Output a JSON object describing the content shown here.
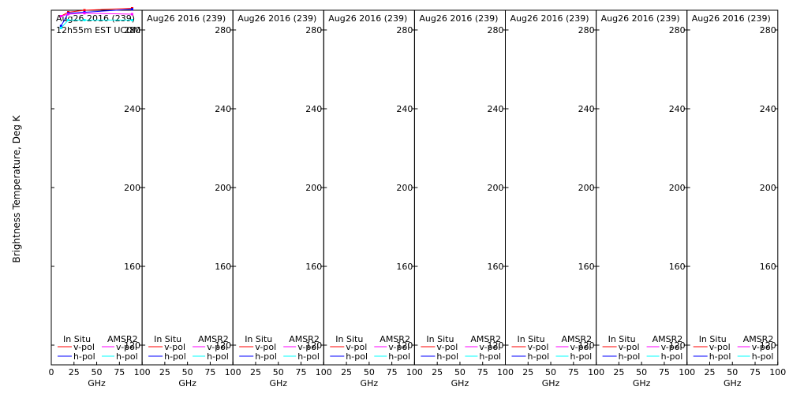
{
  "chart_data": {
    "type": "line",
    "ylabel": "Brightness Temperature, Deg K",
    "ylim": [
      110,
      290
    ],
    "xlim": [
      0,
      100
    ],
    "yticks": [
      "120",
      "160",
      "200",
      "240",
      "280"
    ],
    "xticks": [
      "0",
      "25",
      "50",
      "75",
      "100"
    ],
    "grid": false,
    "legend_placement": "bottom",
    "colors": {
      "insitu_v": "#ff0000",
      "insitu_h": "#0000ff",
      "amsr2_v": "#ff00ff",
      "amsr2_h": "#00ffff",
      "axis": "#000000"
    },
    "panels": [
      {
        "title": "Aug26 2016 (239)",
        "subtitle": "12h55m EST UCOM",
        "xlabel": "GHz",
        "legend": {
          "col1": "In Situ",
          "col2": "AMSR2",
          "v": "v-pol",
          "h": "h-pol"
        },
        "series": [
          {
            "key": "insitu_v",
            "x": [
              10.7,
              18.7,
              36.5,
              89.0
            ],
            "y": [
              287.0,
              289.0,
              290.0,
              291.0
            ]
          },
          {
            "key": "insitu_h",
            "x": [
              10.7,
              18.7,
              36.5,
              89.0
            ],
            "y": [
              282.0,
              288.5,
              289.0,
              290.5
            ]
          },
          {
            "key": "amsr2_v",
            "x": [
              10.7,
              18.7,
              36.5,
              89.0
            ],
            "y": [
              287.0,
              288.0,
              288.5,
              288.0
            ]
          },
          {
            "key": "amsr2_h",
            "x": [
              10.7,
              18.7,
              36.5,
              89.0
            ],
            "y": [
              281.0,
              285.0,
              285.0,
              285.0
            ]
          }
        ]
      },
      {
        "title": "Aug26 2016 (239)",
        "xlabel": "GHz",
        "legend": {
          "col1": "In Situ",
          "col2": "AMSR2",
          "v": "v-pol",
          "h": "h-pol"
        },
        "series": []
      },
      {
        "title": "Aug26 2016 (239)",
        "xlabel": "GHz",
        "legend": {
          "col1": "In Situ",
          "col2": "AMSR2",
          "v": "v-pol",
          "h": "h-pol"
        },
        "series": []
      },
      {
        "title": "Aug26 2016 (239)",
        "xlabel": "GHz",
        "legend": {
          "col1": "In Situ",
          "col2": "AMSR2",
          "v": "v-pol",
          "h": "h-pol"
        },
        "series": []
      },
      {
        "title": "Aug26 2016 (239)",
        "xlabel": "GHz",
        "legend": {
          "col1": "In Situ",
          "col2": "AMSR2",
          "v": "v-pol",
          "h": "h-pol"
        },
        "series": []
      },
      {
        "title": "Aug26 2016 (239)",
        "xlabel": "GHz",
        "legend": {
          "col1": "In Situ",
          "col2": "AMSR2",
          "v": "v-pol",
          "h": "h-pol"
        },
        "series": []
      },
      {
        "title": "Aug26 2016 (239)",
        "xlabel": "GHz",
        "legend": {
          "col1": "In Situ",
          "col2": "AMSR2",
          "v": "v-pol",
          "h": "h-pol"
        },
        "series": []
      },
      {
        "title": "Aug26 2016 (239)",
        "xlabel": "GHz",
        "legend": {
          "col1": "In Situ",
          "col2": "AMSR2",
          "v": "v-pol",
          "h": "h-pol"
        },
        "series": []
      }
    ]
  }
}
